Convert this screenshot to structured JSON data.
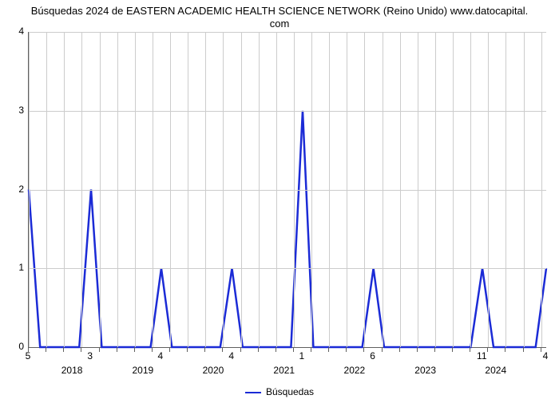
{
  "chart": {
    "type": "line",
    "title_line1": "Búsquedas 2024 de EASTERN ACADEMIC HEALTH SCIENCE NETWORK (Reino Unido) www.datocapital.",
    "title_line2": "com",
    "title_fontsize": 13,
    "background_color": "#ffffff",
    "grid_color": "#cccccc",
    "axis_color": "#606060",
    "tick_font_color": "#000000",
    "tick_fontsize": 12,
    "line_color": "#1b2bd6",
    "line_width": 2.5,
    "ylim": [
      0,
      4
    ],
    "yticks": [
      0,
      1,
      2,
      3,
      4
    ],
    "x_value_labels": [
      "5",
      "3",
      "4",
      "4",
      "1",
      "6",
      "11",
      "4"
    ],
    "x_value_positions": [
      0,
      12.0,
      25.6,
      39.3,
      52.9,
      66.6,
      87.7,
      100
    ],
    "x_year_labels": [
      "2018",
      "2019",
      "2020",
      "2021",
      "2022",
      "2023",
      "2024"
    ],
    "x_year_positions": [
      8.5,
      22.2,
      35.8,
      49.5,
      63.1,
      76.8,
      90.4
    ],
    "x_minor_ticks": [
      0,
      3.414,
      6.829,
      10.243,
      13.659,
      17.073,
      20.488,
      23.902,
      27.317,
      30.731,
      34.146,
      37.561,
      40.976,
      44.389,
      47.805,
      51.219,
      54.634,
      58.049,
      61.464,
      64.878,
      68.293,
      71.707,
      75.122,
      78.537,
      81.951,
      85.366,
      88.78,
      92.195,
      95.61,
      99.024
    ],
    "series": {
      "x": [
        0,
        2.19,
        4.26,
        9.76,
        12.04,
        14.1,
        23.55,
        25.61,
        27.66,
        37.01,
        39.27,
        41.33,
        50.68,
        52.93,
        55.0,
        64.45,
        66.61,
        68.67,
        85.4,
        87.66,
        89.82,
        97.95,
        100
      ],
      "y": [
        2.0,
        0,
        0,
        0,
        2.0,
        0,
        0,
        1.0,
        0,
        0,
        1.0,
        0,
        0,
        3.0,
        0,
        0,
        1.0,
        0,
        0,
        1.0,
        0,
        0,
        1.0
      ]
    },
    "legend_label": "Búsquedas"
  }
}
